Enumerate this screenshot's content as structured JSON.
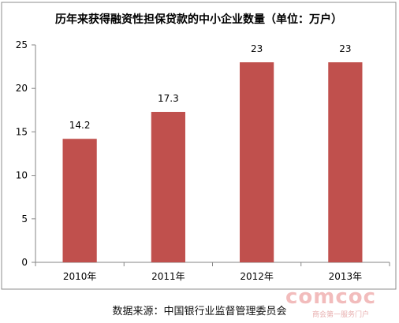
{
  "chart_data": {
    "type": "bar",
    "title": "历年来获得融资性担保贷款的中小企业数量（单位：万户）",
    "categories": [
      "2010年",
      "2011年",
      "2012年",
      "2013年"
    ],
    "values": [
      14.2,
      17.3,
      23,
      23
    ],
    "data_labels": [
      "14.2",
      "17.3",
      "23",
      "23"
    ],
    "ylim": [
      0,
      25
    ],
    "yticks": [
      0,
      5,
      10,
      15,
      20,
      25
    ],
    "xlabel": "",
    "ylabel": "",
    "grid": false,
    "legend": "none",
    "bar_color": "#c0504d"
  },
  "source_note": "数据来源：中国银行业监督管理委员会",
  "watermark": {
    "logo": "comcoc",
    "tagline": "商会第一服务门户"
  }
}
